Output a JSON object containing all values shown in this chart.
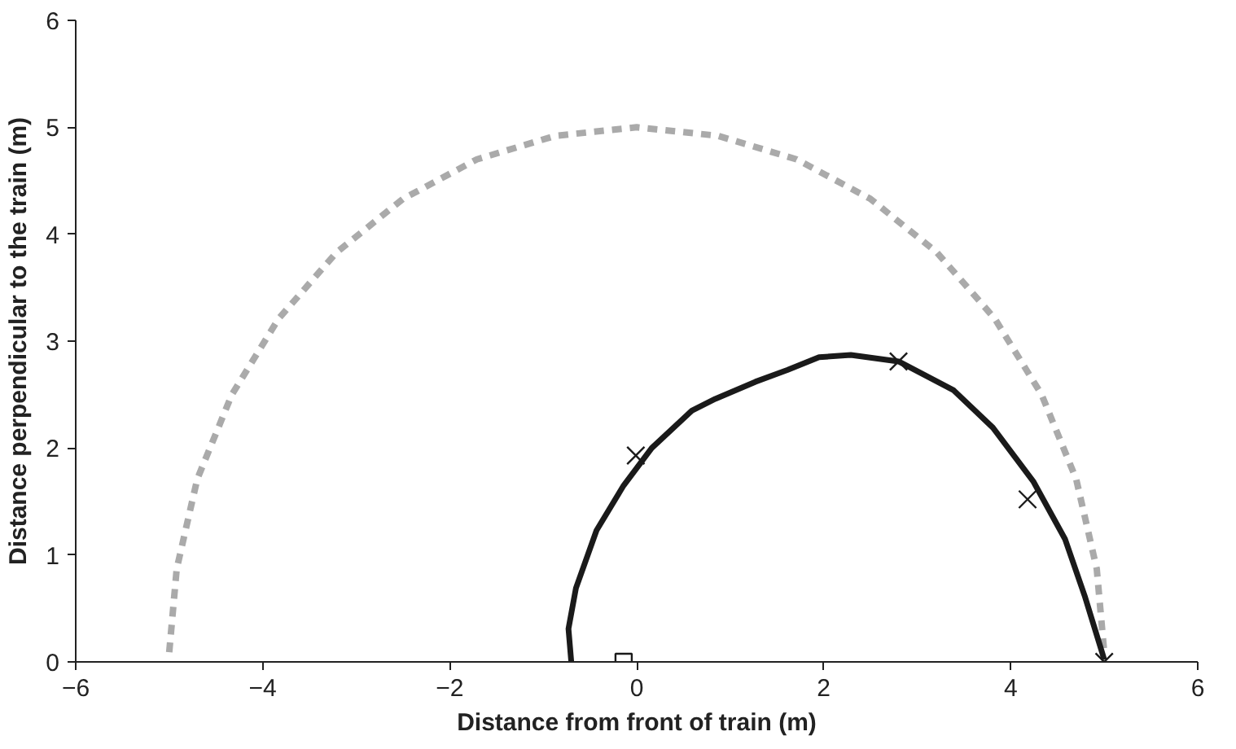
{
  "chart_data": {
    "type": "line",
    "xlabel": "Distance from front of train (m)",
    "ylabel": "Distance perpendicular to the train (m)",
    "xlim": [
      -6,
      6
    ],
    "ylim": [
      0,
      6
    ],
    "xticks": [
      -6,
      -4,
      -2,
      0,
      2,
      4,
      6
    ],
    "yticks": [
      0,
      1,
      2,
      3,
      4,
      5,
      6
    ],
    "series": [
      {
        "line_style": "dashed",
        "color": "#aaaaaa",
        "x": [
          -5.0,
          -4.92,
          -4.7,
          -4.33,
          -3.83,
          -3.21,
          -2.5,
          -1.71,
          -0.87,
          0,
          0.87,
          1.71,
          2.5,
          3.21,
          3.83,
          4.33,
          4.7,
          4.92,
          5.0
        ],
        "values": [
          0.09,
          0.87,
          1.71,
          2.5,
          3.21,
          3.83,
          4.33,
          4.7,
          4.92,
          5.0,
          4.92,
          4.7,
          4.33,
          3.83,
          3.21,
          2.5,
          1.71,
          0.87,
          0.09
        ]
      },
      {
        "line_style": "solid",
        "color": "#1a1a1a",
        "x": [
          -0.7,
          -0.73,
          -0.65,
          -0.43,
          -0.14,
          0.16,
          0.59,
          0.84,
          1.27,
          1.61,
          1.95,
          2.29,
          2.8,
          3.39,
          3.81,
          4.24,
          4.58,
          4.79,
          4.98,
          5.0
        ],
        "values": [
          0,
          0.31,
          0.69,
          1.23,
          1.65,
          2.0,
          2.35,
          2.46,
          2.62,
          2.73,
          2.85,
          2.87,
          2.81,
          2.54,
          2.19,
          1.69,
          1.15,
          0.62,
          0.08,
          0.02
        ]
      },
      {
        "type": "scatter",
        "marker": "cross",
        "color": "#1a1a1a",
        "x": [
          -0.01,
          2.8,
          4.18,
          5.0
        ],
        "values": [
          1.93,
          2.81,
          1.52,
          0.0
        ]
      },
      {
        "type": "scatter",
        "marker": "square",
        "color": "#1a1a1a",
        "x": [
          -0.14
        ],
        "values": [
          0.0
        ]
      }
    ]
  }
}
